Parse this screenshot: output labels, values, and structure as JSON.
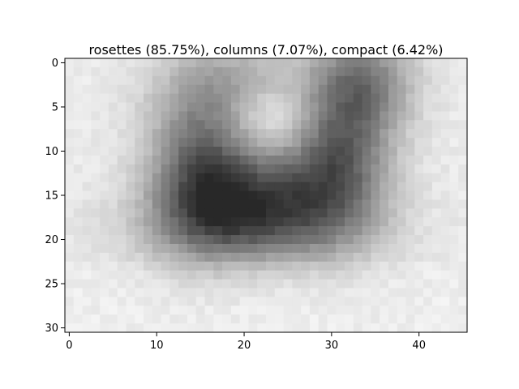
{
  "chart_data": {
    "type": "heatmap",
    "title": "rosettes (85.75%), columns (7.07%), compact (6.42%)",
    "xlabel": "",
    "ylabel": "",
    "colormap": "gray",
    "xlim": [
      -0.5,
      45.5
    ],
    "ylim": [
      30.5,
      -0.5
    ],
    "x_ticks": [
      0,
      10,
      20,
      30,
      40
    ],
    "y_ticks": [
      0,
      5,
      10,
      15,
      20,
      25,
      30
    ],
    "grid": false,
    "image_size": {
      "columns": 46,
      "rows": 31
    },
    "bright_level": 235,
    "dark_shapes": [
      {
        "description": "top left blob",
        "center_x": 19,
        "center_y": 3,
        "sx": 6,
        "sy": 4,
        "darkness": 70
      },
      {
        "description": "top right blob",
        "center_x": 34,
        "center_y": 2,
        "sx": 4,
        "sy": 4,
        "darkness": 90
      },
      {
        "description": "V left arm",
        "center_x": 15,
        "center_y": 12,
        "sx": 4,
        "sy": 6,
        "darkness": 110
      },
      {
        "description": "V right arm",
        "center_x": 31,
        "center_y": 10,
        "sx": 4,
        "sy": 6,
        "darkness": 120
      },
      {
        "description": "V bottom",
        "center_x": 22,
        "center_y": 15,
        "sx": 7,
        "sy": 4,
        "darkness": 130
      },
      {
        "description": "lower halo",
        "center_x": 21,
        "center_y": 19,
        "sx": 9,
        "sy": 3,
        "darkness": 70
      },
      {
        "description": "upper center light patch",
        "center_x": 23,
        "center_y": 6,
        "sx": 4,
        "sy": 3,
        "darkness": -55
      }
    ]
  }
}
